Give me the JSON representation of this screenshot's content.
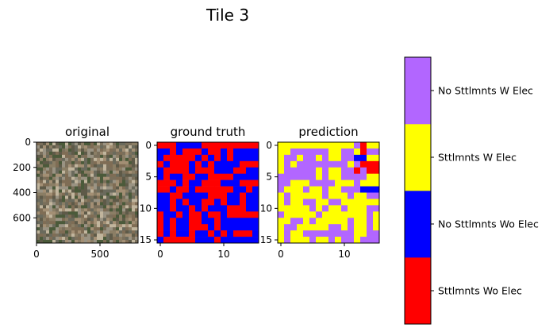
{
  "chart_data": [
    {
      "type": "heatmap",
      "suptitle": "Tile 3",
      "title": "original",
      "content": "satellite image (RGB), 800 x 800 px",
      "x_ticks": [
        0,
        500
      ],
      "y_ticks": [
        0,
        200,
        400,
        600
      ],
      "xlim": [
        0,
        800
      ],
      "ylim": [
        800,
        0
      ],
      "colors": {
        "terrain": [
          "#7f6d55",
          "#a38f74",
          "#5e5a48",
          "#8b7e65",
          "#c1b59d",
          "#6a6a5c",
          "#4b5a3a",
          "#9a9383",
          "#7a6f5b"
        ]
      }
    },
    {
      "type": "heatmap",
      "title": "ground truth",
      "x_ticks": [
        0,
        10
      ],
      "y_ticks": [
        0,
        5,
        10,
        15
      ],
      "shape": [
        16,
        16
      ],
      "grid": [
        "0001111000000000",
        "1101000100101111",
        "1000001010101111",
        "0100010101111000",
        "1000010001110011",
        "1011001100001111",
        "0001011000111000",
        "0010010000001101",
        "1100111100011011",
        "1101011001011011",
        "1101101011100011",
        "0110100100100000",
        "0101100110111111",
        "0101100010111111",
        "0101101101010001",
        "1000001110111111"
      ]
    },
    {
      "type": "heatmap",
      "title": "prediction",
      "x_ticks": [
        0,
        10
      ],
      "y_ticks": [
        0,
        5,
        10,
        15
      ],
      "shape": [
        16,
        16
      ],
      "grid": [
        "2222222222223022",
        "2233333322332033",
        "2332332322331122",
        "2323333333323000",
        "2333332322330300",
        "3333332322333322",
        "3322233332223222",
        "3222322322333111",
        "2322222322232233",
        "2322332233222222",
        "2222232322322233",
        "3222223222222232",
        "2233232222232232",
        "2332222233232232",
        "2322333333332233",
        "2322232232332333"
      ]
    }
  ],
  "colorbar": {
    "classes": [
      {
        "label": "Sttlmnts Wo Elec",
        "color": "#ff0000"
      },
      {
        "label": "No Sttlmnts Wo Elec",
        "color": "#0000ff"
      },
      {
        "label": "Sttlmnts W Elec",
        "color": "#ffff00"
      },
      {
        "label": "No Sttlmnts W Elec",
        "color": "#b266ff"
      }
    ]
  }
}
